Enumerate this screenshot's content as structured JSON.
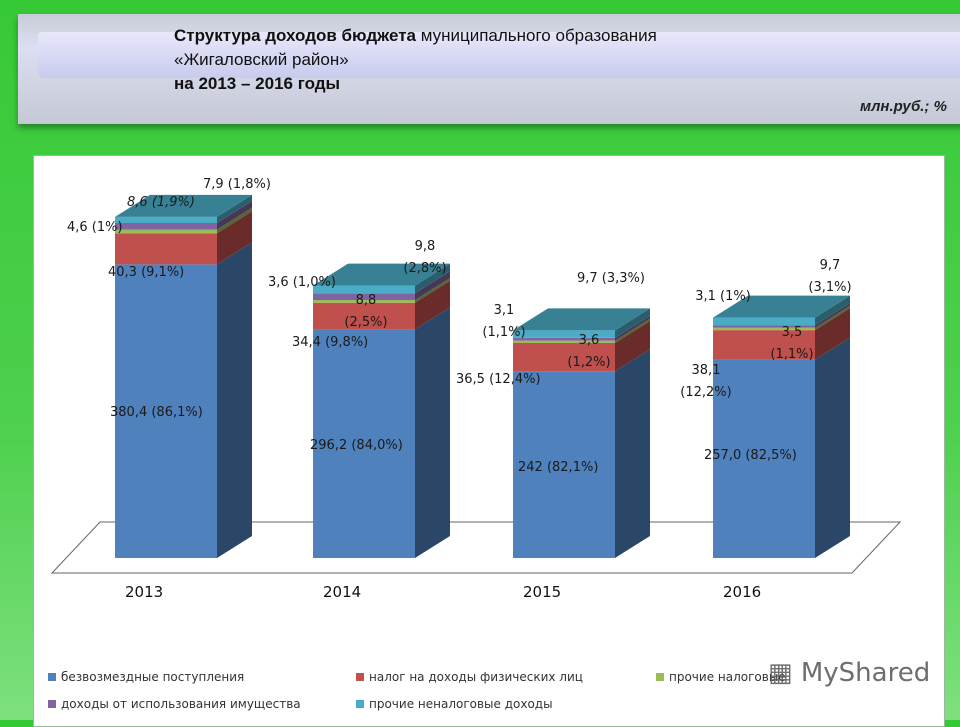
{
  "header": {
    "title_bold": "Структура доходов бюджета",
    "title_rest": " муниципального образования",
    "title_line2": "«Жигаловский район»",
    "title_line3": "на 2013 – 2016 годы",
    "unit": "млн.руб.; %"
  },
  "chart_data": {
    "type": "bar",
    "stacked": true,
    "three_d": true,
    "categories": [
      "2013",
      "2014",
      "2015",
      "2016"
    ],
    "series": [
      {
        "name": "безвозмездные поступления",
        "color": "#4f81bd",
        "values": [
          380.4,
          296.2,
          242,
          257.0
        ],
        "labels": [
          "380,4 (86,1%)",
          "296,2 (84,0%)",
          "242 (82,1%)",
          "257,0 (82,5%)"
        ]
      },
      {
        "name": "налог на доходы физических лиц",
        "color": "#c0504d",
        "values": [
          40.3,
          34.4,
          36.5,
          38.1
        ],
        "labels": [
          "40,3 (9,1%)",
          "34,4 (9,8%)",
          "36,5 (12,4%)",
          "38,1 (12,2%)"
        ]
      },
      {
        "name": "прочие налоговые",
        "color": "#9bbb59",
        "values": [
          4.6,
          3.6,
          3.1,
          3.1
        ],
        "labels": [
          "4,6 (1%)",
          "3,6 (1,0%)",
          "3,1 (1,1%)",
          "3,1 (1%)"
        ]
      },
      {
        "name": "доходы от использования имущества",
        "color": "#8064a2",
        "values": [
          8.6,
          8.8,
          3.6,
          3.5
        ],
        "labels": [
          "8,6 (1,9%)",
          "8,8 (2,5%)",
          "3,6 (1,2%)",
          "3,5 (1,1%)"
        ]
      },
      {
        "name": "прочие  неналоговые доходы",
        "color": "#4bacc6",
        "values": [
          7.9,
          9.8,
          9.7,
          9.7
        ],
        "labels": [
          "7,9 (1,8%)",
          "9,8 (2,8%)",
          "9,7 (3,3%)",
          "9,7 (3,1%)"
        ]
      }
    ],
    "legend": "bottom",
    "grid": false,
    "ylim": [
      0,
      460
    ]
  },
  "watermark": "MyShared"
}
